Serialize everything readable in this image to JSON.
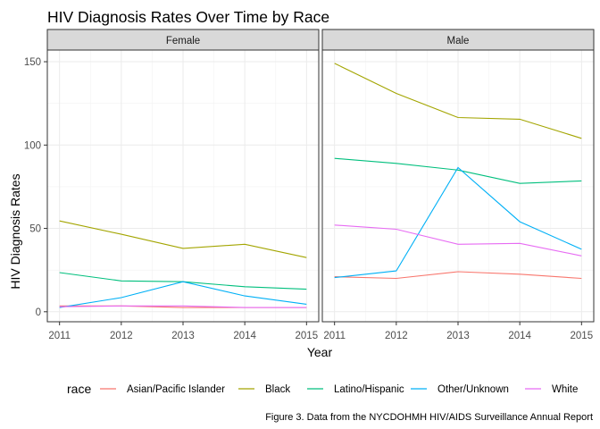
{
  "chart_data": {
    "type": "line",
    "title": "HIV Diagnosis Rates Over Time by Race",
    "xlabel": "Year",
    "ylabel": "HIV Diagnosis Rates",
    "caption": "Figure 3. Data from the NYCDOHMH HIV/AIDS Surveillance Annual Report",
    "x": [
      2011,
      2012,
      2013,
      2014,
      2015
    ],
    "x_ticks": [
      "2011",
      "2012",
      "2013",
      "2014",
      "2015"
    ],
    "ylim": [
      -6,
      157
    ],
    "y_ticks": [
      0,
      50,
      100,
      150
    ],
    "grid": true,
    "legend_title": "race",
    "legend_position": "bottom",
    "panels": [
      {
        "label": "Female",
        "series": [
          {
            "name": "Asian/Pacific Islander",
            "values": [
              3.5,
              3.5,
              2.5,
              2.5,
              2.5
            ]
          },
          {
            "name": "Black",
            "values": [
              54.5,
              46.5,
              38.0,
              40.5,
              32.5
            ]
          },
          {
            "name": "Latino/Hispanic",
            "values": [
              23.5,
              18.5,
              18.0,
              15.0,
              13.5
            ]
          },
          {
            "name": "Other/Unknown",
            "values": [
              2.5,
              8.5,
              18.0,
              9.5,
              4.5
            ]
          },
          {
            "name": "White",
            "values": [
              3.0,
              3.5,
              3.5,
              2.5,
              2.5
            ]
          }
        ]
      },
      {
        "label": "Male",
        "series": [
          {
            "name": "Asian/Pacific Islander",
            "values": [
              21.0,
              20.0,
              24.0,
              22.5,
              20.0
            ]
          },
          {
            "name": "Black",
            "values": [
              149.0,
              131.0,
              116.5,
              115.5,
              104.0
            ]
          },
          {
            "name": "Latino/Hispanic",
            "values": [
              92.0,
              89.0,
              85.0,
              77.0,
              78.5
            ]
          },
          {
            "name": "Other/Unknown",
            "values": [
              20.5,
              24.5,
              86.5,
              54.0,
              37.5
            ]
          },
          {
            "name": "White",
            "values": [
              52.0,
              49.5,
              40.5,
              41.0,
              33.5
            ]
          }
        ]
      }
    ],
    "colors": {
      "Asian/Pacific Islander": "#F8766D",
      "Black": "#A3A500",
      "Latino/Hispanic": "#00BF7D",
      "Other/Unknown": "#00B0F6",
      "White": "#E76BF3"
    }
  }
}
